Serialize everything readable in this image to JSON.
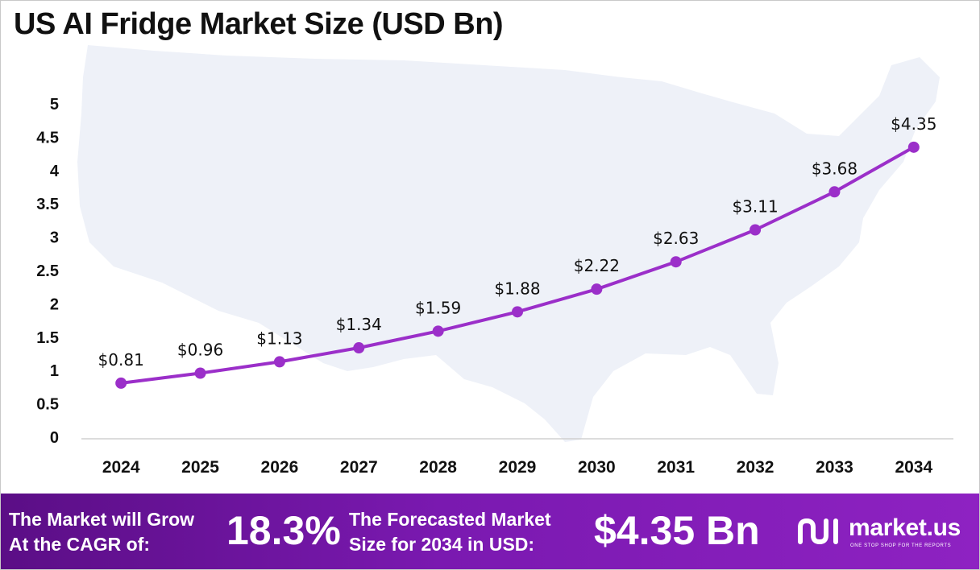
{
  "title": "US AI Fridge Market Size (USD Bn)",
  "colors": {
    "line": "#9b2fc9",
    "marker": "#9b2fc9",
    "map": "#eef1f8",
    "footer": "#7a19b0"
  },
  "chart_data": {
    "type": "line",
    "title": "US AI Fridge Market Size (USD Bn)",
    "categories": [
      "2024",
      "2025",
      "2026",
      "2027",
      "2028",
      "2029",
      "2030",
      "2031",
      "2032",
      "2033",
      "2034"
    ],
    "values": [
      0.81,
      0.96,
      1.13,
      1.34,
      1.59,
      1.88,
      2.22,
      2.63,
      3.11,
      3.68,
      4.35
    ],
    "data_labels": [
      "$0.81",
      "$0.96",
      "$1.13",
      "$1.34",
      "$1.59",
      "$1.88",
      "$2.22",
      "$2.63",
      "$3.11",
      "$3.68",
      "$4.35"
    ],
    "yticks": [
      "0",
      "0.5",
      "1",
      "1.5",
      "2",
      "2.5",
      "3",
      "3.5",
      "4",
      "4.5",
      "5"
    ],
    "ylim": [
      0,
      5
    ],
    "grid": false,
    "legend": "none",
    "background": "us-map-silhouette"
  },
  "footer": {
    "cagr_label_line1": "The Market will Grow",
    "cagr_label_line2": "At the CAGR of:",
    "cagr_value": "18.3%",
    "forecast_label_line1": "The Forecasted Market",
    "forecast_label_line2": "Size for 2034 in USD:",
    "forecast_value": "$4.35 Bn",
    "brand_name": "market.us",
    "brand_tagline": "ONE STOP SHOP FOR THE REPORTS"
  }
}
